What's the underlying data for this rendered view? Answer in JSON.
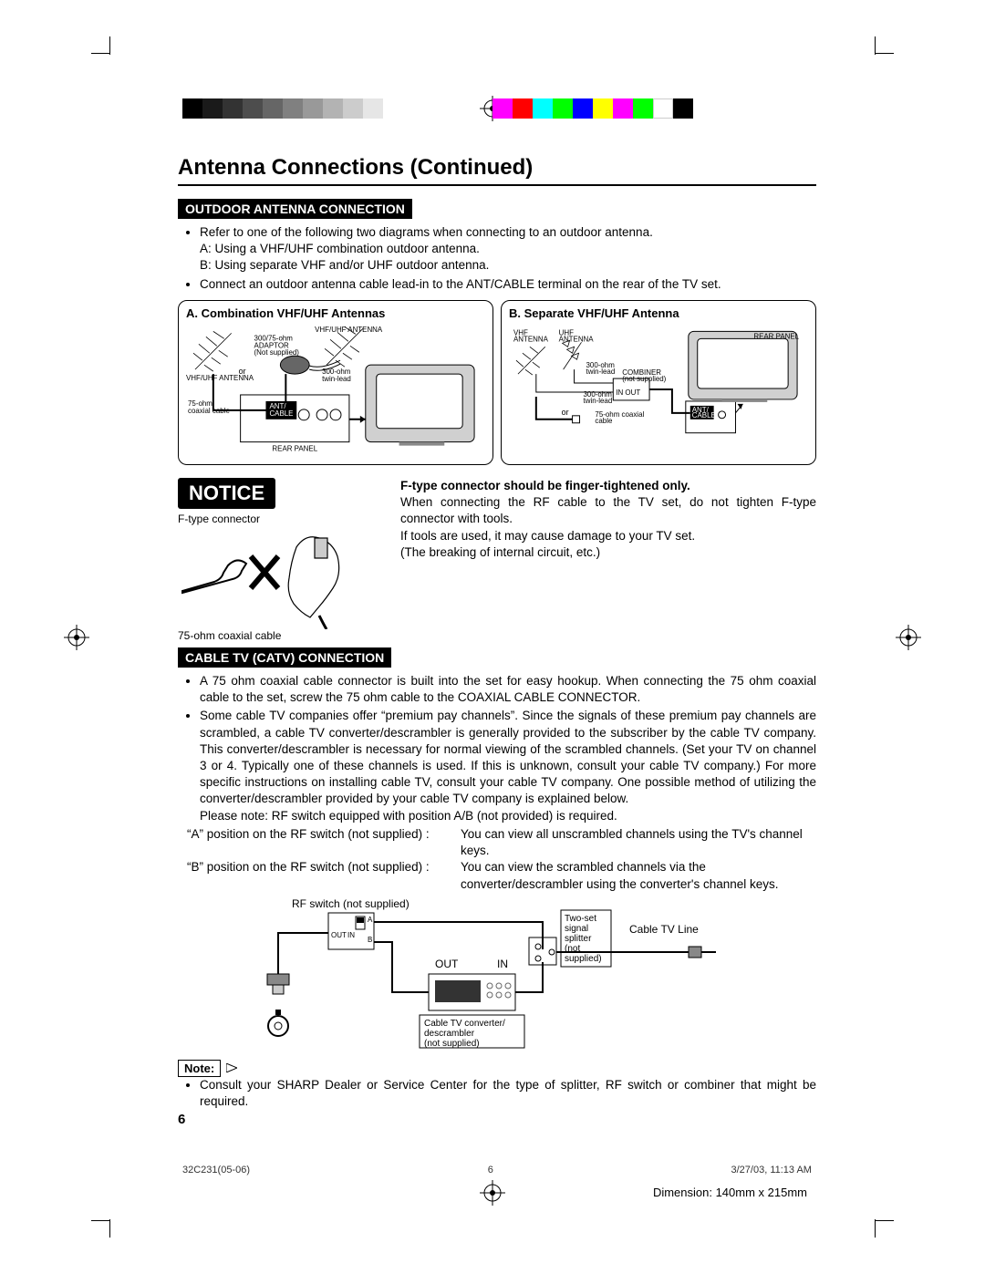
{
  "print": {
    "grayscale": [
      "#000000",
      "#1a1a1a",
      "#333333",
      "#4d4d4d",
      "#666666",
      "#808080",
      "#999999",
      "#b3b3b3",
      "#cccccc",
      "#e6e6e6",
      "#ffffff"
    ],
    "colors": [
      "#ff00ff",
      "#ff0000",
      "#00ffff",
      "#00ff00",
      "#0000ff",
      "#ffff00",
      "#ff00ff",
      "#00ff00",
      "#ffffff",
      "#000000"
    ]
  },
  "title": "Antenna Connections (Continued)",
  "outdoor": {
    "header": "OUTDOOR ANTENNA CONNECTION",
    "bullets": [
      "Refer to one of the following two diagrams when connecting to an outdoor antenna.",
      "Connect an outdoor antenna cable lead-in to the ANT/CABLE terminal on the rear of the TV set."
    ],
    "sub_lines": [
      "A: Using a VHF/UHF combination outdoor antenna.",
      "B: Using separate VHF and/or UHF outdoor antenna."
    ],
    "diagramA": {
      "title": "A. Combination VHF/UHF Antennas",
      "labels": {
        "vhf_uhf_antenna_top": "VHF/UHF ANTENNA",
        "vhf_uhf_antenna_left": "VHF/UHF ANTENNA",
        "adaptor": "300/75-ohm ADAPTOR (Not supplied)",
        "twin_lead": "300-ohm twin-lead",
        "coax": "75-ohm coaxial cable",
        "or": "or",
        "ant_cable": "ANT/ CABLE",
        "rear_panel": "REAR PANEL"
      }
    },
    "diagramB": {
      "title": "B. Separate VHF/UHF Antenna",
      "labels": {
        "vhf_antenna": "VHF ANTENNA",
        "uhf_antenna": "UHF ANTENNA",
        "twin_lead": "300-ohm twin-lead",
        "combiner": "COMBINER (not supplied)",
        "in_out": "IN OUT",
        "coax": "75-ohm coaxial cable",
        "or": "or",
        "ant_cable": "ANT/ CABLE",
        "rear_panel": "REAR PANEL"
      }
    }
  },
  "notice": {
    "badge": "NOTICE",
    "heading": "F-type connector should be finger-tightened only.",
    "body1": "When connecting the RF cable to the TV set, do not tighten F-type connector with tools.",
    "body2": "If tools are used, it may cause damage to your TV set.",
    "body3": "(The breaking of internal circuit, etc.)",
    "ftype_label": "F-type connector",
    "coax_label": "75-ohm coaxial cable"
  },
  "catv": {
    "header": "CABLE TV (CATV) CONNECTION",
    "bullets": [
      "A 75 ohm coaxial cable connector is built into the set for easy hookup. When connecting the 75 ohm coaxial cable to the set, screw the 75 ohm cable to the COAXIAL CABLE CONNECTOR.",
      "Some cable TV companies offer “premium pay channels”. Since the signals of these premium pay channels are scrambled, a cable TV converter/descrambler is generally provided to the subscriber by the cable TV company. This converter/descrambler is necessary for normal viewing of the scrambled channels. (Set your TV on channel 3 or 4. Typically one of these channels is used. If this is unknown, consult your cable TV company.) For more specific instructions on installing cable TV, consult your cable TV company. One possible method of utilizing the converter/descrambler provided by your cable TV company is explained below."
    ],
    "please_note": "Please note: RF switch equipped with position A/B (not provided) is required.",
    "rf_a_lhs": "“A” position on the RF switch (not supplied) :",
    "rf_a_rhs": "You can view all unscrambled channels using the TV's channel keys.",
    "rf_b_lhs": "“B” position on the RF switch (not supplied) :",
    "rf_b_rhs": "You can view the scrambled channels via the converter/descrambler using the converter's channel keys.",
    "diagram": {
      "rf_switch": "RF switch (not supplied)",
      "out_label": "OUT",
      "in_label": "IN",
      "a": "A",
      "b": "B",
      "in": "IN",
      "out": "OUT",
      "converter": "Cable TV converter/ descrambler (not supplied)",
      "splitter": "Two-set signal splitter (not supplied)",
      "cable_line": "Cable TV Line"
    },
    "note_title": "Note:",
    "note_body": "Consult your SHARP Dealer or Service Center for the type of splitter, RF switch or combiner that might be required."
  },
  "page_number": "6",
  "footer": {
    "doc": "32C231(05-06)",
    "page": "6",
    "timestamp": "3/27/03, 11:13 AM"
  },
  "dimension": "Dimension: 140mm x 215mm",
  "colors": {
    "black": "#000000",
    "white": "#ffffff"
  }
}
